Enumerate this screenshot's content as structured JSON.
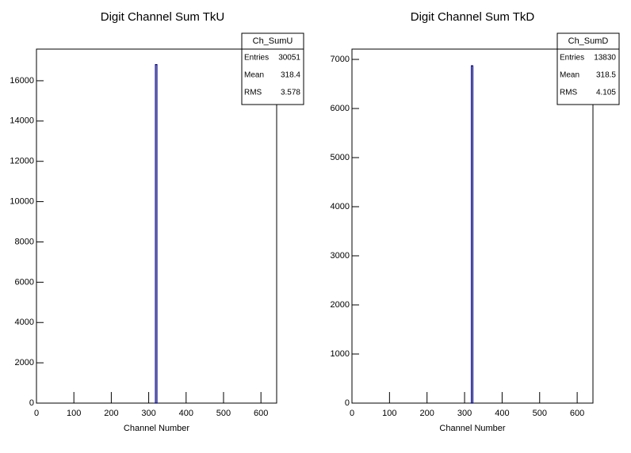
{
  "chart_data": [
    {
      "type": "histogram",
      "title": "Digit Channel Sum TkU",
      "x_label": "Channel Number",
      "bins": [
        318,
        322
      ],
      "values": [
        16800
      ],
      "color": "#000080",
      "xlim": [
        0,
        642
      ],
      "xticks": [
        0,
        100,
        200,
        300,
        400,
        500,
        600
      ],
      "ylim": [
        0,
        17570
      ],
      "yticks": [
        0,
        2000,
        4000,
        6000,
        8000,
        10000,
        12000,
        14000,
        16000
      ],
      "stats": {
        "name": "Ch_SumU",
        "rows": [
          {
            "label": "Entries",
            "value": 30051
          },
          {
            "label": "Mean",
            "value": 318.4
          },
          {
            "label": "RMS",
            "value": 3.578
          }
        ]
      }
    },
    {
      "type": "histogram",
      "title": "Digit Channel Sum TkD",
      "x_label": "Channel Number",
      "bins": [
        318,
        322
      ],
      "values": [
        6870
      ],
      "color": "#000080",
      "xlim": [
        0,
        642
      ],
      "xticks": [
        0,
        100,
        200,
        300,
        400,
        500,
        600
      ],
      "ylim": [
        0,
        7210
      ],
      "yticks": [
        0,
        1000,
        2000,
        3000,
        4000,
        5000,
        6000,
        7000
      ],
      "stats": {
        "name": "Ch_SumD",
        "rows": [
          {
            "label": "Entries",
            "value": 13830
          },
          {
            "label": "Mean",
            "value": 318.5
          },
          {
            "label": "RMS",
            "value": 4.105
          }
        ]
      }
    }
  ]
}
